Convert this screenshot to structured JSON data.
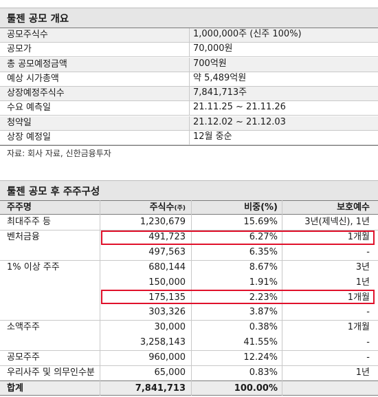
{
  "overview": {
    "title": "툴젠 공모 개요",
    "rows": [
      {
        "key": "공모주식수",
        "value": "1,000,000주 (신주 100%)"
      },
      {
        "key": "공모가",
        "value": "70,000원"
      },
      {
        "key": "총 공모예정금액",
        "value": "700억원"
      },
      {
        "key": "예상 시가총액",
        "value": "약 5,489억원"
      },
      {
        "key": "상장예정주식수",
        "value": "7,841,713주"
      },
      {
        "key": "수요 예측일",
        "value": "21.11.25 ~ 21.11.26"
      },
      {
        "key": "청약일",
        "value": "21.12.02 ~ 21.12.03"
      },
      {
        "key": "상장 예정일",
        "value": "12월 중순"
      }
    ],
    "source": "자료: 회사 자료, 신한금융투자"
  },
  "shareholders": {
    "title": "툴젠 공모 후 주주구성",
    "headers": {
      "name": "주주명",
      "shares": "주식수",
      "shares_unit": "(주)",
      "ratio": "비중(%)",
      "lockup": "보호예수"
    },
    "rows": [
      {
        "name": "최대주주 등",
        "shares": "1,230,679",
        "ratio": "15.69%",
        "lockup": "3년(제넥신), 1년"
      },
      {
        "name": "벤처금융",
        "shares": "491,723",
        "ratio": "6.27%",
        "lockup": "1개월"
      },
      {
        "name": "",
        "shares": "497,563",
        "ratio": "6.35%",
        "lockup": "-"
      },
      {
        "name": "1% 이상 주주",
        "shares": "680,144",
        "ratio": "8.67%",
        "lockup": "3년"
      },
      {
        "name": "",
        "shares": "150,000",
        "ratio": "1.91%",
        "lockup": "1년"
      },
      {
        "name": "",
        "shares": "175,135",
        "ratio": "2.23%",
        "lockup": "1개월"
      },
      {
        "name": "",
        "shares": "303,326",
        "ratio": "3.87%",
        "lockup": "-"
      },
      {
        "name": "소액주주",
        "shares": "30,000",
        "ratio": "0.38%",
        "lockup": "1개월"
      },
      {
        "name": "",
        "shares": "3,258,143",
        "ratio": "41.55%",
        "lockup": "-"
      },
      {
        "name": "공모주주",
        "shares": "960,000",
        "ratio": "12.24%",
        "lockup": "-"
      },
      {
        "name": "우리사주 및 의무인수분",
        "shares": "65,000",
        "ratio": "0.83%",
        "lockup": "1년"
      }
    ],
    "total": {
      "name": "합계",
      "shares": "7,841,713",
      "ratio": "100.00%",
      "lockup": ""
    }
  }
}
